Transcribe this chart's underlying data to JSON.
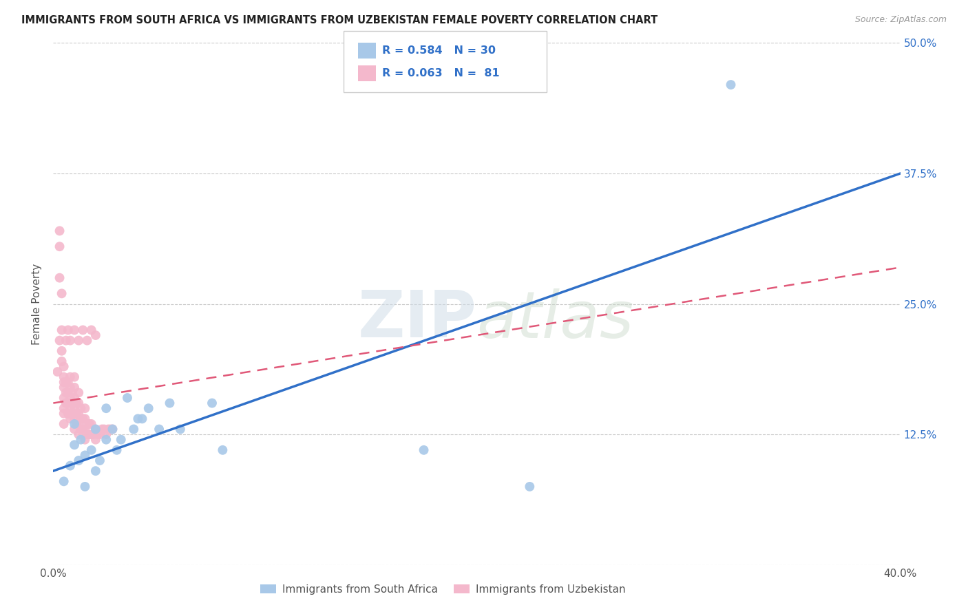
{
  "title": "IMMIGRANTS FROM SOUTH AFRICA VS IMMIGRANTS FROM UZBEKISTAN FEMALE POVERTY CORRELATION CHART",
  "source": "Source: ZipAtlas.com",
  "ylabel": "Female Poverty",
  "xlim": [
    0,
    0.4
  ],
  "ylim": [
    0,
    0.5
  ],
  "yticks": [
    0.0,
    0.125,
    0.25,
    0.375,
    0.5
  ],
  "yticklabels_right": [
    "",
    "12.5%",
    "25.0%",
    "37.5%",
    "50.0%"
  ],
  "xtick_positions": [
    0.0,
    0.4
  ],
  "xticklabels": [
    "0.0%",
    "40.0%"
  ],
  "blue_label": "Immigrants from South Africa",
  "pink_label": "Immigrants from Uzbekistan",
  "blue_R": "R = 0.584",
  "blue_N": "N = 30",
  "pink_R": "R = 0.063",
  "pink_N": "N =  81",
  "blue_scatter_color": "#a8c8e8",
  "pink_scatter_color": "#f4b8cc",
  "blue_line_color": "#3070c8",
  "pink_line_color": "#e05878",
  "legend_text_color": "#3070c8",
  "background_color": "#ffffff",
  "grid_color": "#c8c8c8",
  "watermark_color": "#e0e8f0",
  "blue_trend_x": [
    0.0,
    0.4
  ],
  "blue_trend_y": [
    0.09,
    0.375
  ],
  "pink_trend_x": [
    0.0,
    0.4
  ],
  "pink_trend_y": [
    0.155,
    0.285
  ],
  "blue_scatter_x": [
    0.005,
    0.008,
    0.01,
    0.01,
    0.012,
    0.013,
    0.015,
    0.015,
    0.018,
    0.02,
    0.02,
    0.022,
    0.025,
    0.025,
    0.028,
    0.03,
    0.032,
    0.035,
    0.038,
    0.04,
    0.042,
    0.045,
    0.05,
    0.055,
    0.06,
    0.075,
    0.08,
    0.175,
    0.225,
    0.32
  ],
  "blue_scatter_y": [
    0.08,
    0.095,
    0.115,
    0.135,
    0.1,
    0.12,
    0.105,
    0.075,
    0.11,
    0.09,
    0.13,
    0.1,
    0.15,
    0.12,
    0.13,
    0.11,
    0.12,
    0.16,
    0.13,
    0.14,
    0.14,
    0.15,
    0.13,
    0.155,
    0.13,
    0.155,
    0.11,
    0.11,
    0.075,
    0.46
  ],
  "pink_scatter_x": [
    0.002,
    0.003,
    0.003,
    0.003,
    0.004,
    0.004,
    0.004,
    0.005,
    0.005,
    0.005,
    0.005,
    0.005,
    0.005,
    0.005,
    0.005,
    0.006,
    0.006,
    0.006,
    0.007,
    0.007,
    0.007,
    0.007,
    0.008,
    0.008,
    0.008,
    0.008,
    0.008,
    0.009,
    0.009,
    0.009,
    0.01,
    0.01,
    0.01,
    0.01,
    0.01,
    0.01,
    0.011,
    0.011,
    0.011,
    0.012,
    0.012,
    0.012,
    0.012,
    0.012,
    0.013,
    0.013,
    0.013,
    0.014,
    0.014,
    0.015,
    0.015,
    0.015,
    0.015,
    0.016,
    0.016,
    0.017,
    0.017,
    0.018,
    0.018,
    0.019,
    0.02,
    0.02,
    0.021,
    0.022,
    0.023,
    0.024,
    0.025,
    0.026,
    0.027,
    0.028,
    0.003,
    0.004,
    0.006,
    0.007,
    0.008,
    0.01,
    0.012,
    0.014,
    0.016,
    0.018,
    0.02
  ],
  "pink_scatter_y": [
    0.185,
    0.32,
    0.275,
    0.305,
    0.195,
    0.26,
    0.205,
    0.15,
    0.16,
    0.17,
    0.175,
    0.18,
    0.19,
    0.135,
    0.145,
    0.155,
    0.165,
    0.175,
    0.145,
    0.155,
    0.165,
    0.175,
    0.14,
    0.15,
    0.16,
    0.17,
    0.18,
    0.145,
    0.155,
    0.165,
    0.13,
    0.14,
    0.15,
    0.16,
    0.17,
    0.18,
    0.135,
    0.145,
    0.155,
    0.125,
    0.135,
    0.145,
    0.155,
    0.165,
    0.13,
    0.14,
    0.15,
    0.13,
    0.14,
    0.12,
    0.13,
    0.14,
    0.15,
    0.125,
    0.135,
    0.125,
    0.135,
    0.125,
    0.135,
    0.125,
    0.12,
    0.13,
    0.125,
    0.125,
    0.13,
    0.13,
    0.125,
    0.13,
    0.13,
    0.13,
    0.215,
    0.225,
    0.215,
    0.225,
    0.215,
    0.225,
    0.215,
    0.225,
    0.215,
    0.225,
    0.22
  ]
}
